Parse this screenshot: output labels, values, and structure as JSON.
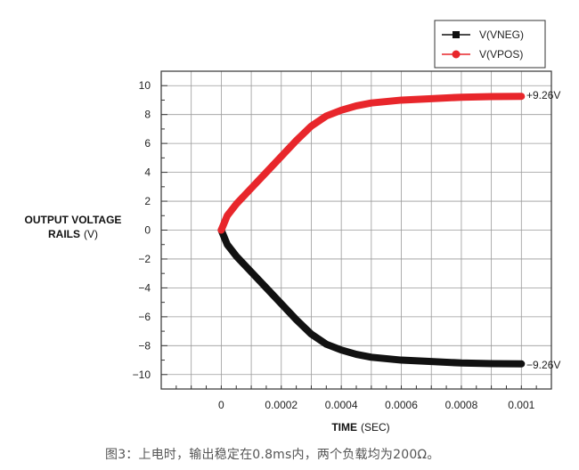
{
  "chart_data": {
    "type": "line",
    "xlabel": "TIME",
    "xlabel_unit": "(SEC)",
    "ylabel_line1": "OUTPUT VOLTAGE",
    "ylabel_line2": "RAILS",
    "ylabel_unit": "(V)",
    "xlim": [
      -0.0002,
      0.0011
    ],
    "ylim": [
      -11,
      11
    ],
    "x_ticks": [
      0,
      0.0002,
      0.0004,
      0.0006,
      0.0008,
      0.001
    ],
    "x_tick_labels": [
      "0",
      "0.0002",
      "0.0004",
      "0.0006",
      "0.0008",
      "0.001"
    ],
    "y_ticks": [
      10,
      8,
      6,
      4,
      2,
      0,
      -2,
      -4,
      -6,
      -8,
      -10
    ],
    "y_tick_labels": [
      "10",
      "8",
      "6",
      "4",
      "2",
      "0",
      "−2",
      "−4",
      "−6",
      "−8",
      "−10"
    ],
    "grid": true,
    "legend_position": "top-right",
    "series": [
      {
        "name": "V(VNEG)",
        "color": "#111111",
        "marker": "square",
        "x": [
          0,
          2e-05,
          5e-05,
          0.0001,
          0.00015,
          0.0002,
          0.00025,
          0.0003,
          0.00035,
          0.0004,
          0.00045,
          0.0005,
          0.0006,
          0.0007,
          0.0008,
          0.0009,
          0.001
        ],
        "y": [
          0,
          -1.0,
          -1.8,
          -2.9,
          -4.0,
          -5.1,
          -6.2,
          -7.2,
          -7.9,
          -8.3,
          -8.6,
          -8.8,
          -9.0,
          -9.1,
          -9.2,
          -9.24,
          -9.26
        ]
      },
      {
        "name": "V(VPOS)",
        "color": "#e8262b",
        "marker": "circle",
        "x": [
          0,
          2e-05,
          5e-05,
          0.0001,
          0.00015,
          0.0002,
          0.00025,
          0.0003,
          0.00035,
          0.0004,
          0.00045,
          0.0005,
          0.0006,
          0.0007,
          0.0008,
          0.0009,
          0.001
        ],
        "y": [
          0,
          1.0,
          1.8,
          2.9,
          4.0,
          5.1,
          6.2,
          7.2,
          7.9,
          8.3,
          8.6,
          8.8,
          9.0,
          9.1,
          9.2,
          9.24,
          9.26
        ]
      }
    ],
    "annotations": [
      {
        "text": "+9.26V",
        "series": "V(VPOS)"
      },
      {
        "text": "−9.26V",
        "series": "V(VNEG)"
      }
    ]
  },
  "caption": "图3：上电时，输出稳定在0.8ms内，两个负载均为200Ω。"
}
